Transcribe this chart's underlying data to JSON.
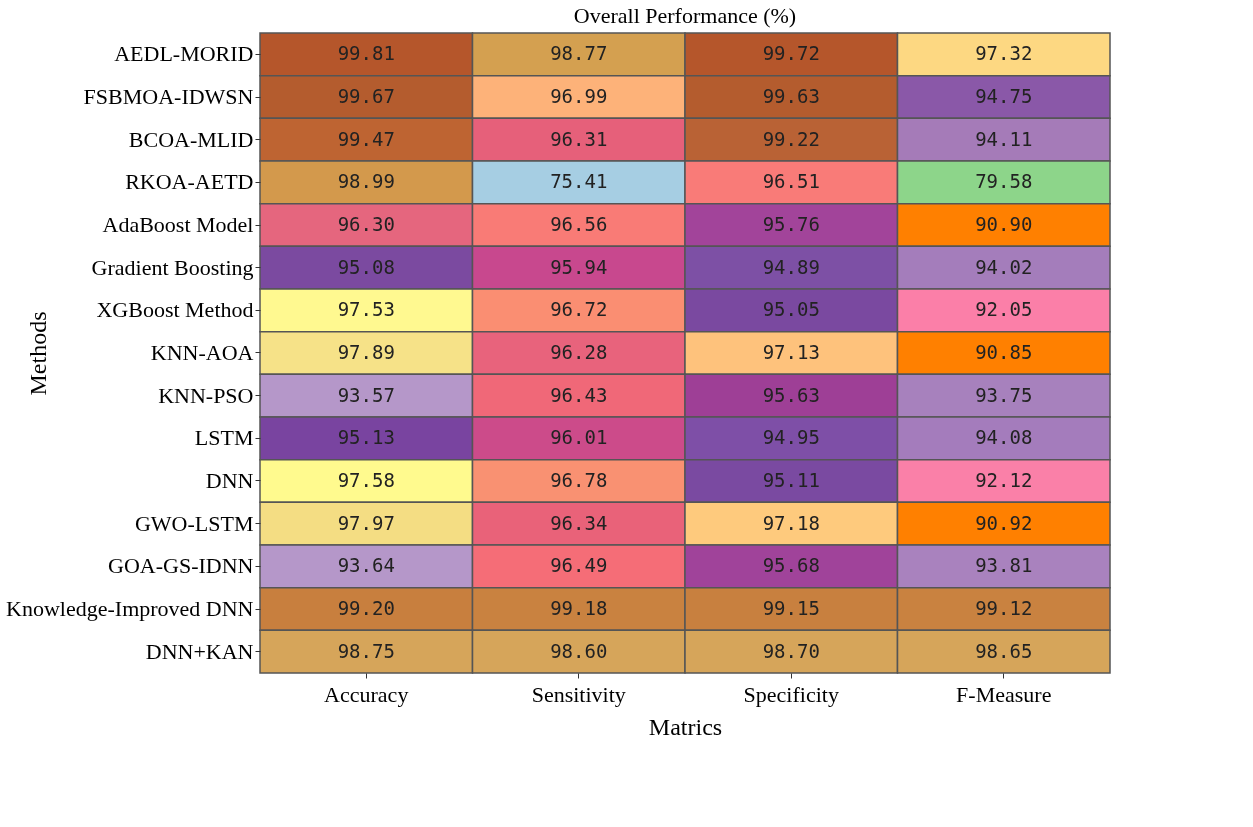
{
  "chart_data": {
    "type": "heatmap",
    "title": "Overall Performance (%)",
    "xlabel": "Matrics",
    "ylabel": "Methods",
    "categories": [
      "Accuracy",
      "Sensitivity",
      "Specificity",
      "F-Measure"
    ],
    "y_categories": [
      "AEDL-MORID",
      "FSBMOA-IDWSN",
      "BCOA-MLID",
      "RKOA-AETD",
      "AdaBoost Model",
      "Gradient Boosting",
      "XGBoost Method",
      "KNN-AOA",
      "KNN-PSO",
      "LSTM",
      "DNN",
      "GWO-LSTM",
      "GOA-GS-IDNN",
      "Knowledge-Improved DNN",
      "DNN+KAN"
    ],
    "cells": [
      [
        99.81,
        98.77,
        99.72,
        97.32
      ],
      [
        99.67,
        96.99,
        99.63,
        94.75
      ],
      [
        99.47,
        96.31,
        99.22,
        94.11
      ],
      [
        98.99,
        75.41,
        96.51,
        79.58
      ],
      [
        96.3,
        96.56,
        95.76,
        90.9
      ],
      [
        95.08,
        95.94,
        94.89,
        94.02
      ],
      [
        97.53,
        96.72,
        95.05,
        92.05
      ],
      [
        97.89,
        96.28,
        97.13,
        90.85
      ],
      [
        93.57,
        96.43,
        95.63,
        93.75
      ],
      [
        95.13,
        96.01,
        94.95,
        94.08
      ],
      [
        97.58,
        96.78,
        95.11,
        92.12
      ],
      [
        97.97,
        96.34,
        97.18,
        90.92
      ],
      [
        93.64,
        96.49,
        95.68,
        93.81
      ],
      [
        99.2,
        99.18,
        99.15,
        99.12
      ],
      [
        98.75,
        98.6,
        98.7,
        98.65
      ]
    ],
    "colors": [
      [
        "#b5562b",
        "#d4a050",
        "#b5562b",
        "#fdd882"
      ],
      [
        "#b45c2e",
        "#fdb279",
        "#b45c2e",
        "#8a58a8"
      ],
      [
        "#be6432",
        "#e6607a",
        "#b96235",
        "#a57bb8"
      ],
      [
        "#d3994c",
        "#a6cee3",
        "#f97b78",
        "#8dd58a"
      ],
      [
        "#e5667e",
        "#f97b76",
        "#a2449a",
        "#ff8000"
      ],
      [
        "#7b4aa0",
        "#c8488e",
        "#7d50a5",
        "#a47dbb"
      ],
      [
        "#fff990",
        "#fa8e72",
        "#7a49a0",
        "#fb7fa8"
      ],
      [
        "#f6e288",
        "#e8637c",
        "#fec27c",
        "#ff8000"
      ],
      [
        "#b597c9",
        "#f06878",
        "#9e3f96",
        "#a781bd"
      ],
      [
        "#7944a0",
        "#cc4b8a",
        "#7e4fa7",
        "#a47cbc"
      ],
      [
        "#fffa8e",
        "#f99172",
        "#7a4aa1",
        "#fa80a8"
      ],
      [
        "#f4dd83",
        "#e96279",
        "#feca7d",
        "#ff8000"
      ],
      [
        "#b597c9",
        "#f56d77",
        "#a0439a",
        "#a982be"
      ],
      [
        "#c87f3e",
        "#c98240",
        "#c8803f",
        "#c98240"
      ],
      [
        "#d6a55a",
        "#d6a55a",
        "#d6a55a",
        "#d6a55a"
      ]
    ],
    "cell_labels": [
      [
        "99.81",
        "98.77",
        "99.72",
        "97.32"
      ],
      [
        "99.67",
        "96.99",
        "99.63",
        "94.75"
      ],
      [
        "99.47",
        "96.31",
        "99.22",
        "94.11"
      ],
      [
        "98.99",
        "75.41",
        "96.51",
        "79.58"
      ],
      [
        "96.30",
        "96.56",
        "95.76",
        "90.90"
      ],
      [
        "95.08",
        "95.94",
        "94.89",
        "94.02"
      ],
      [
        "97.53",
        "96.72",
        "95.05",
        "92.05"
      ],
      [
        "97.89",
        "96.28",
        "97.13",
        "90.85"
      ],
      [
        "93.57",
        "96.43",
        "95.63",
        "93.75"
      ],
      [
        "95.13",
        "96.01",
        "94.95",
        "94.08"
      ],
      [
        "97.58",
        "96.78",
        "95.11",
        "92.12"
      ],
      [
        "97.97",
        "96.34",
        "97.18",
        "90.92"
      ],
      [
        "93.64",
        "96.49",
        "95.68",
        "93.81"
      ],
      [
        "99.20",
        "99.18",
        "99.15",
        "99.12"
      ],
      [
        "98.75",
        "98.60",
        "98.70",
        "98.65"
      ]
    ],
    "grid": false
  }
}
